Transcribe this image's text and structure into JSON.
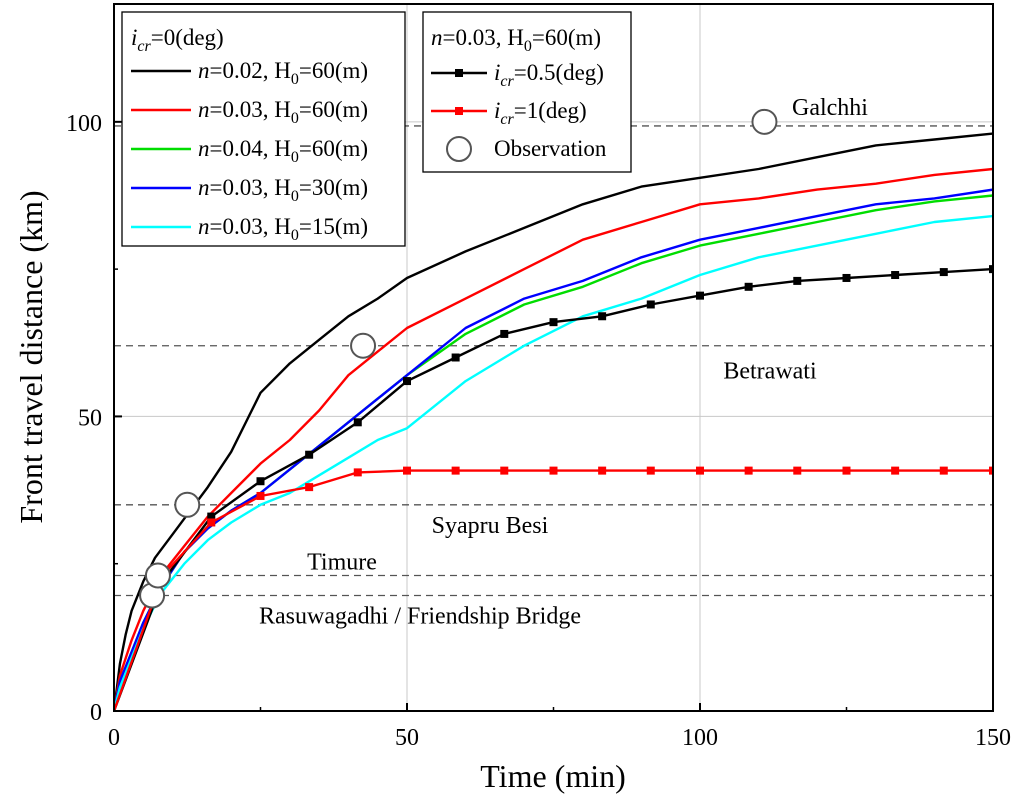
{
  "chart_data": {
    "type": "line",
    "xlabel": "Time (min)",
    "ylabel": "Front travel distance (km)",
    "xlim": [
      0,
      150
    ],
    "ylim": [
      0,
      120
    ],
    "xticks": [
      0,
      50,
      100,
      150
    ],
    "yticks": [
      0,
      50,
      100
    ],
    "grid": true,
    "reference_lines": [
      {
        "label": "Galchhi",
        "y": 99.3
      },
      {
        "label": "Betrawati",
        "y": 62
      },
      {
        "label": "Syapru Besi",
        "y": 35
      },
      {
        "label": "Timure",
        "y": 23
      },
      {
        "label": "Rasuwagadhi / Friendship Bridge",
        "y": 19.6
      }
    ],
    "legend_groups": [
      {
        "header": {
          "var": "i",
          "sub": "cr",
          "rest": "=0(deg)"
        },
        "placement": "top-left"
      },
      {
        "header": {
          "pre": "n=0.03, H",
          "sub": "0",
          "rest": "=60(m)"
        },
        "placement": "top-center"
      }
    ],
    "series": [
      {
        "name": "n=0.02, H0=60(m)",
        "label_parts": {
          "n": "=0.02, H",
          "sub": "0",
          "rest": "=60(m)"
        },
        "color": "#000000",
        "marker": "none",
        "x": [
          0,
          1,
          2,
          3,
          5,
          7,
          10,
          13,
          16,
          20,
          23,
          25,
          30,
          35,
          40,
          45,
          50,
          60,
          70,
          80,
          90,
          100,
          110,
          120,
          130,
          140,
          150
        ],
        "y": [
          0,
          8,
          13,
          17,
          22,
          26,
          30,
          34,
          38,
          44,
          50,
          54,
          59,
          63,
          67,
          70,
          73.5,
          78,
          82,
          86,
          89,
          90.5,
          92,
          94,
          96,
          97,
          98
        ]
      },
      {
        "name": "n=0.03, H0=60(m)",
        "label_parts": {
          "n": "=0.03, H",
          "sub": "0",
          "rest": "=60(m)"
        },
        "color": "#ff0000",
        "marker": "none",
        "x": [
          0,
          1,
          3,
          5,
          8,
          12,
          16,
          20,
          25,
          30,
          35,
          40,
          45,
          50,
          60,
          70,
          80,
          90,
          100,
          110,
          120,
          130,
          140,
          150
        ],
        "y": [
          0,
          6,
          12,
          17,
          23,
          28,
          33,
          37,
          42,
          46,
          51,
          57,
          61,
          65,
          70,
          75,
          80,
          83,
          86,
          87,
          88.5,
          89.5,
          91,
          92
        ]
      },
      {
        "name": "n=0.04, H0=60(m)",
        "label_parts": {
          "n": "=0.04, H",
          "sub": "0",
          "rest": "=60(m)"
        },
        "color": "#00dd00",
        "marker": "none",
        "x": [
          0,
          1,
          3,
          5,
          8,
          12,
          16,
          20,
          25,
          30,
          35,
          40,
          45,
          50,
          60,
          70,
          80,
          90,
          100,
          110,
          120,
          130,
          140,
          150
        ],
        "y": [
          0,
          5,
          10,
          15,
          21,
          27,
          31,
          34,
          37,
          41,
          45,
          49,
          53,
          57,
          64,
          69,
          72,
          76,
          79,
          81,
          83,
          85,
          86.5,
          87.5
        ]
      },
      {
        "name": "n=0.03, H0=30(m)",
        "label_parts": {
          "n": "=0.03, H",
          "sub": "0",
          "rest": "=30(m)"
        },
        "color": "#0000ff",
        "marker": "none",
        "x": [
          0,
          1,
          3,
          5,
          8,
          12,
          16,
          20,
          25,
          30,
          35,
          40,
          45,
          50,
          60,
          70,
          80,
          90,
          100,
          110,
          120,
          130,
          140,
          150
        ],
        "y": [
          0,
          5,
          10,
          15,
          21,
          27,
          31,
          34,
          37,
          41,
          45,
          49,
          53,
          57,
          65,
          70,
          73,
          77,
          80,
          82,
          84,
          86,
          87,
          88.5
        ]
      },
      {
        "name": "n=0.03, H0=15(m)",
        "label_parts": {
          "n": "=0.03, H",
          "sub": "0",
          "rest": "=15(m)"
        },
        "color": "#00ffff",
        "marker": "none",
        "x": [
          0,
          1,
          3,
          5,
          8,
          12,
          16,
          20,
          25,
          30,
          35,
          40,
          45,
          50,
          60,
          70,
          80,
          90,
          100,
          110,
          120,
          130,
          140,
          150
        ],
        "y": [
          0,
          4,
          9,
          14,
          20,
          25,
          29,
          32,
          35,
          37,
          40,
          43,
          46,
          48,
          56,
          62,
          67,
          70,
          74,
          77,
          79,
          81,
          83,
          84
        ]
      },
      {
        "name": "icr=0.5(deg)",
        "label_parts": {
          "var": "i",
          "sub": "cr",
          "rest": "=0.5(deg)"
        },
        "color": "#000000",
        "marker": "square",
        "x": [
          0,
          8.3,
          16.6,
          25,
          33.3,
          41.6,
          50,
          58.3,
          66.6,
          75,
          83.3,
          91.6,
          100,
          108.3,
          116.6,
          125,
          133.3,
          141.6,
          150
        ],
        "y": [
          0,
          22,
          33,
          39,
          43.5,
          49,
          56,
          60,
          64,
          66,
          67,
          69,
          70.5,
          72,
          73,
          73.5,
          74,
          74.5,
          75
        ]
      },
      {
        "name": "icr=1(deg)",
        "label_parts": {
          "var": "i",
          "sub": "cr",
          "rest": "=1(deg)"
        },
        "color": "#ff0000",
        "marker": "square",
        "x": [
          0,
          8.3,
          16.6,
          25,
          33.3,
          41.6,
          50,
          58.3,
          66.6,
          75,
          83.3,
          91.6,
          100,
          108.3,
          116.6,
          125,
          133.3,
          141.6,
          150
        ],
        "y": [
          0,
          23,
          32,
          36.5,
          38,
          40.5,
          40.8,
          40.8,
          40.8,
          40.8,
          40.8,
          40.8,
          40.8,
          40.8,
          40.8,
          40.8,
          40.8,
          40.8,
          40.8
        ]
      },
      {
        "name": "Observation",
        "color": "#555555",
        "marker": "open-circle",
        "line": false,
        "x": [
          6.5,
          7.5,
          12.5,
          42.5,
          111
        ],
        "y": [
          19.6,
          23,
          35,
          62,
          100
        ]
      }
    ]
  }
}
